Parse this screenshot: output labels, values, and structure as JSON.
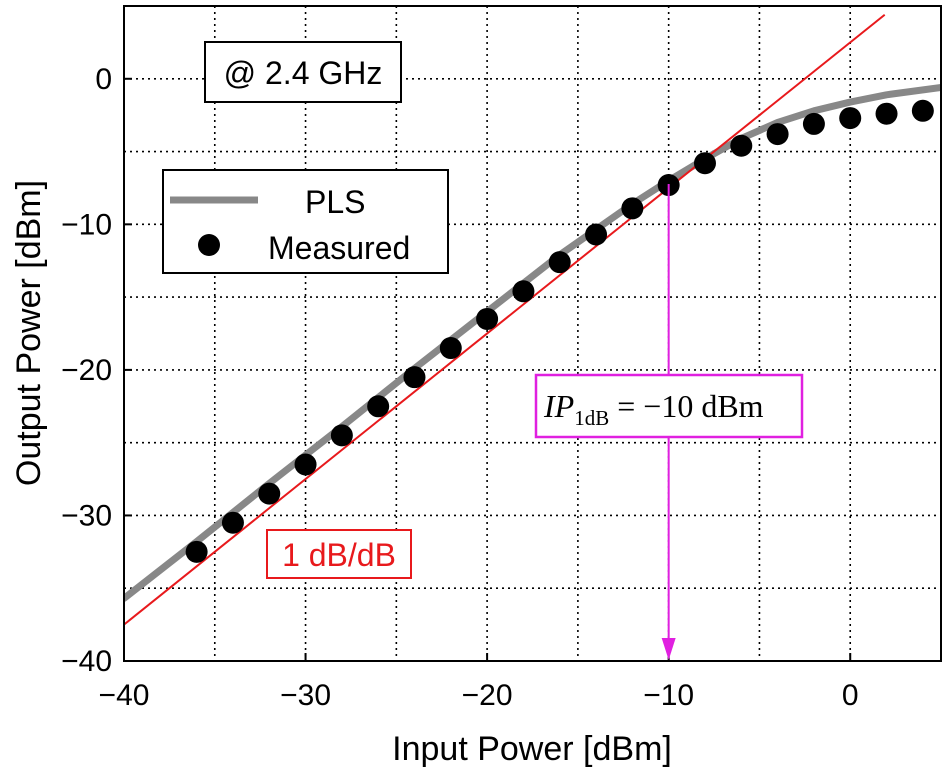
{
  "chart_data": {
    "type": "line",
    "xlabel": "Input Power [dBm]",
    "ylabel": "Output Power [dBm]",
    "xlim": [
      -40,
      5
    ],
    "ylim": [
      -40,
      5
    ],
    "xticks": [
      -40,
      -30,
      -20,
      -10,
      0
    ],
    "yticks": [
      -40,
      -30,
      -20,
      -10,
      0
    ],
    "grid": true,
    "legend_position": "upper-left",
    "series": [
      {
        "name": "PLS",
        "style": "line",
        "color": "#888888",
        "x": [
          -40,
          -36,
          -32,
          -28,
          -24,
          -20,
          -16,
          -12,
          -10,
          -8,
          -6,
          -4,
          -2,
          0,
          2,
          5
        ],
        "y": [
          -35.7,
          -31.8,
          -27.8,
          -23.9,
          -19.9,
          -16.0,
          -12.1,
          -8.6,
          -7.0,
          -5.5,
          -4.1,
          -3.0,
          -2.2,
          -1.6,
          -1.1,
          -0.6
        ]
      },
      {
        "name": "Measured",
        "style": "markers",
        "color": "#000000",
        "x": [
          -36,
          -34,
          -32,
          -30,
          -28,
          -26,
          -24,
          -22,
          -20,
          -18,
          -16,
          -14,
          -12,
          -10,
          -8,
          -6,
          -4,
          -2,
          0,
          2,
          4
        ],
        "y": [
          -32.5,
          -30.5,
          -28.5,
          -26.5,
          -24.5,
          -22.5,
          -20.5,
          -18.5,
          -16.5,
          -14.6,
          -12.6,
          -10.7,
          -8.9,
          -7.3,
          -5.8,
          -4.6,
          -3.8,
          -3.1,
          -2.7,
          -2.4,
          -2.2
        ]
      },
      {
        "style": "line",
        "color": "#e8191c",
        "x": [
          -40,
          1.9
        ],
        "y": [
          -37.5,
          4.4
        ]
      }
    ],
    "annotations": {
      "frequency": "@ 2.4 GHz",
      "slope": "1 dB/dB",
      "ip1db_italic": "IP",
      "ip1db_sub": "1dB",
      "ip1db_rest": " = −10 dBm",
      "ip1db_x": -10,
      "slope_color": "#e8191c",
      "ip1db_color": "#e020e0"
    }
  }
}
